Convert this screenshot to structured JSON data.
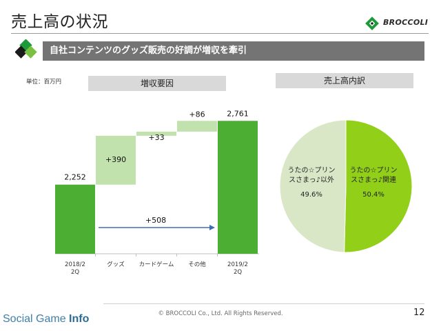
{
  "page": {
    "title": "売上高の状況",
    "subtitle": "自社コンテンツのグッズ販売の好調が増収を牽引",
    "unit": "単位：百万円",
    "page_number": "12",
    "copyright": "© BROCCOLI Co., Ltd. All Rights Reserved."
  },
  "logo": {
    "text": "BROCCOLI",
    "color": "#1f9a3a"
  },
  "watermark": {
    "part1": "Social Game ",
    "part2": "Info"
  },
  "panels": {
    "left_header": "増収要因",
    "right_header": "売上高内訳"
  },
  "colors": {
    "total_bar": "#4cae33",
    "delta_bar": "#c1e2ad",
    "pie_major": "#92cf18",
    "pie_minor": "#d9e7c7",
    "arrow": "#3f6db5",
    "subtitle_bg": "#747474"
  },
  "chart_data": [
    {
      "type": "bar",
      "subtype": "waterfall",
      "title": "増収要因",
      "categories": [
        "2018/2\n2Q",
        "グッズ",
        "カードゲーム",
        "その他",
        "2019/2\n2Q"
      ],
      "values": [
        2252,
        390,
        33,
        86,
        2761
      ],
      "labels": [
        "2,252",
        "+390",
        "+33",
        "+86",
        "2,761"
      ],
      "kinds": [
        "total",
        "delta",
        "delta",
        "delta",
        "total"
      ],
      "annotation": {
        "label": "+508",
        "from": "2018/2\n2Q",
        "to": "2019/2\n2Q"
      },
      "xlabel": "",
      "ylabel": "",
      "grid": false
    },
    {
      "type": "pie",
      "title": "売上高内訳",
      "slices": [
        {
          "label": "うたの☆プリンスさまっ♪関連",
          "value": 50.4,
          "value_label": "50.4%"
        },
        {
          "label": "うたの☆プリンスさまっ♪以外",
          "value": 49.6,
          "value_label": "49.6%"
        }
      ]
    }
  ]
}
